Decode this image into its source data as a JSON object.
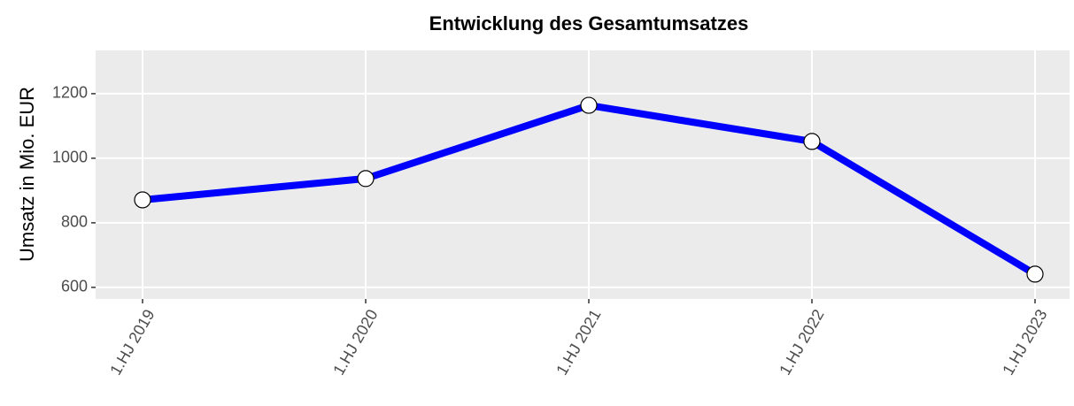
{
  "chart_data": {
    "type": "line",
    "title": "Entwicklung des Gesamtumsatzes",
    "y_label": "Umsatz in Mio. EUR",
    "categories": [
      "1.HJ 2019",
      "1.HJ 2020",
      "1.HJ 2021",
      "1.HJ 2022",
      "1.HJ 2023"
    ],
    "values": [
      871,
      937,
      1164,
      1052,
      641
    ],
    "color": "#0000ff",
    "ylim": [
      564,
      1334
    ],
    "yticks": [
      600,
      800,
      1000,
      1200
    ],
    "grid": true
  }
}
